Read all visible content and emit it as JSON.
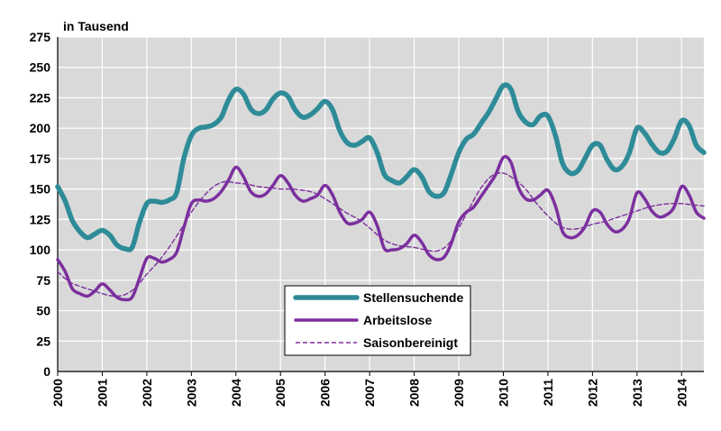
{
  "chart_data": {
    "type": "line",
    "unit_label": "in Tausend",
    "ylim": [
      0,
      275
    ],
    "y_ticks": [
      0,
      25,
      50,
      75,
      100,
      125,
      150,
      175,
      200,
      225,
      250,
      275
    ],
    "x_ticks": [
      "2000",
      "2001",
      "2002",
      "2003",
      "2004",
      "2005",
      "2006",
      "2007",
      "2008",
      "2009",
      "2010",
      "2011",
      "2012",
      "2013",
      "2014"
    ],
    "xlim": [
      2000,
      2014.5
    ],
    "grid": true,
    "legend_position": "bottom-center",
    "series": [
      {
        "name": "Stellensuchende",
        "color": "#2e8b98",
        "style": "solid-thick",
        "points": [
          [
            2000.0,
            152
          ],
          [
            2000.17,
            140
          ],
          [
            2000.33,
            124
          ],
          [
            2000.5,
            115
          ],
          [
            2000.67,
            110
          ],
          [
            2000.83,
            113
          ],
          [
            2001.0,
            116
          ],
          [
            2001.17,
            112
          ],
          [
            2001.33,
            104
          ],
          [
            2001.5,
            101
          ],
          [
            2001.67,
            102
          ],
          [
            2001.83,
            122
          ],
          [
            2002.0,
            138
          ],
          [
            2002.17,
            140
          ],
          [
            2002.33,
            139
          ],
          [
            2002.5,
            141
          ],
          [
            2002.67,
            147
          ],
          [
            2002.83,
            175
          ],
          [
            2003.0,
            194
          ],
          [
            2003.17,
            200
          ],
          [
            2003.33,
            201
          ],
          [
            2003.5,
            203
          ],
          [
            2003.67,
            209
          ],
          [
            2003.83,
            223
          ],
          [
            2004.0,
            232
          ],
          [
            2004.17,
            228
          ],
          [
            2004.33,
            216
          ],
          [
            2004.5,
            212
          ],
          [
            2004.67,
            215
          ],
          [
            2004.83,
            224
          ],
          [
            2005.0,
            229
          ],
          [
            2005.17,
            226
          ],
          [
            2005.33,
            215
          ],
          [
            2005.5,
            209
          ],
          [
            2005.67,
            211
          ],
          [
            2005.83,
            216
          ],
          [
            2006.0,
            222
          ],
          [
            2006.17,
            215
          ],
          [
            2006.33,
            198
          ],
          [
            2006.5,
            188
          ],
          [
            2006.67,
            186
          ],
          [
            2006.83,
            189
          ],
          [
            2007.0,
            192
          ],
          [
            2007.17,
            180
          ],
          [
            2007.33,
            162
          ],
          [
            2007.5,
            157
          ],
          [
            2007.67,
            155
          ],
          [
            2007.83,
            160
          ],
          [
            2008.0,
            166
          ],
          [
            2008.17,
            160
          ],
          [
            2008.33,
            148
          ],
          [
            2008.5,
            144
          ],
          [
            2008.67,
            147
          ],
          [
            2008.83,
            162
          ],
          [
            2009.0,
            180
          ],
          [
            2009.17,
            191
          ],
          [
            2009.33,
            195
          ],
          [
            2009.5,
            204
          ],
          [
            2009.67,
            213
          ],
          [
            2009.83,
            224
          ],
          [
            2010.0,
            235
          ],
          [
            2010.17,
            232
          ],
          [
            2010.33,
            214
          ],
          [
            2010.5,
            205
          ],
          [
            2010.67,
            203
          ],
          [
            2010.83,
            210
          ],
          [
            2011.0,
            210
          ],
          [
            2011.17,
            194
          ],
          [
            2011.33,
            171
          ],
          [
            2011.5,
            163
          ],
          [
            2011.67,
            165
          ],
          [
            2011.83,
            175
          ],
          [
            2012.0,
            186
          ],
          [
            2012.17,
            186
          ],
          [
            2012.33,
            174
          ],
          [
            2012.5,
            166
          ],
          [
            2012.67,
            169
          ],
          [
            2012.83,
            180
          ],
          [
            2013.0,
            200
          ],
          [
            2013.17,
            196
          ],
          [
            2013.33,
            187
          ],
          [
            2013.5,
            180
          ],
          [
            2013.67,
            181
          ],
          [
            2013.83,
            191
          ],
          [
            2014.0,
            206
          ],
          [
            2014.17,
            202
          ],
          [
            2014.33,
            186
          ],
          [
            2014.5,
            180
          ]
        ]
      },
      {
        "name": "Arbeitslose",
        "color": "#7b2f9e",
        "style": "solid",
        "points": [
          [
            2000.0,
            92
          ],
          [
            2000.17,
            82
          ],
          [
            2000.33,
            68
          ],
          [
            2000.5,
            64
          ],
          [
            2000.67,
            62
          ],
          [
            2000.83,
            66
          ],
          [
            2001.0,
            72
          ],
          [
            2001.17,
            67
          ],
          [
            2001.33,
            61
          ],
          [
            2001.5,
            59
          ],
          [
            2001.67,
            61
          ],
          [
            2001.83,
            76
          ],
          [
            2002.0,
            93
          ],
          [
            2002.17,
            93
          ],
          [
            2002.33,
            90
          ],
          [
            2002.5,
            92
          ],
          [
            2002.67,
            98
          ],
          [
            2002.83,
            118
          ],
          [
            2003.0,
            138
          ],
          [
            2003.17,
            141
          ],
          [
            2003.33,
            140
          ],
          [
            2003.5,
            142
          ],
          [
            2003.67,
            148
          ],
          [
            2003.83,
            157
          ],
          [
            2004.0,
            168
          ],
          [
            2004.17,
            160
          ],
          [
            2004.33,
            148
          ],
          [
            2004.5,
            144
          ],
          [
            2004.67,
            146
          ],
          [
            2004.83,
            153
          ],
          [
            2005.0,
            161
          ],
          [
            2005.17,
            155
          ],
          [
            2005.33,
            145
          ],
          [
            2005.5,
            140
          ],
          [
            2005.67,
            142
          ],
          [
            2005.83,
            145
          ],
          [
            2006.0,
            153
          ],
          [
            2006.17,
            145
          ],
          [
            2006.33,
            131
          ],
          [
            2006.5,
            122
          ],
          [
            2006.67,
            122
          ],
          [
            2006.83,
            125
          ],
          [
            2007.0,
            131
          ],
          [
            2007.17,
            120
          ],
          [
            2007.33,
            101
          ],
          [
            2007.5,
            100
          ],
          [
            2007.67,
            101
          ],
          [
            2007.83,
            105
          ],
          [
            2008.0,
            112
          ],
          [
            2008.17,
            106
          ],
          [
            2008.33,
            96
          ],
          [
            2008.5,
            92
          ],
          [
            2008.67,
            94
          ],
          [
            2008.83,
            105
          ],
          [
            2009.0,
            123
          ],
          [
            2009.17,
            131
          ],
          [
            2009.33,
            135
          ],
          [
            2009.5,
            144
          ],
          [
            2009.67,
            153
          ],
          [
            2009.83,
            162
          ],
          [
            2010.0,
            176
          ],
          [
            2010.17,
            172
          ],
          [
            2010.33,
            152
          ],
          [
            2010.5,
            142
          ],
          [
            2010.67,
            141
          ],
          [
            2010.83,
            145
          ],
          [
            2011.0,
            149
          ],
          [
            2011.17,
            136
          ],
          [
            2011.33,
            115
          ],
          [
            2011.5,
            110
          ],
          [
            2011.67,
            112
          ],
          [
            2011.83,
            119
          ],
          [
            2012.0,
            132
          ],
          [
            2012.17,
            131
          ],
          [
            2012.33,
            121
          ],
          [
            2012.5,
            115
          ],
          [
            2012.67,
            117
          ],
          [
            2012.83,
            126
          ],
          [
            2013.0,
            147
          ],
          [
            2013.17,
            142
          ],
          [
            2013.33,
            132
          ],
          [
            2013.5,
            127
          ],
          [
            2013.67,
            129
          ],
          [
            2013.83,
            135
          ],
          [
            2014.0,
            152
          ],
          [
            2014.17,
            145
          ],
          [
            2014.33,
            131
          ],
          [
            2014.5,
            126
          ]
        ]
      },
      {
        "name": "Saisonbereinigt",
        "color": "#7b2f9e",
        "style": "dashed",
        "points": [
          [
            2000.0,
            82
          ],
          [
            2000.25,
            74
          ],
          [
            2000.5,
            70
          ],
          [
            2000.75,
            67
          ],
          [
            2001.0,
            64
          ],
          [
            2001.25,
            62
          ],
          [
            2001.5,
            63
          ],
          [
            2001.75,
            69
          ],
          [
            2002.0,
            80
          ],
          [
            2002.25,
            90
          ],
          [
            2002.5,
            102
          ],
          [
            2002.75,
            116
          ],
          [
            2003.0,
            131
          ],
          [
            2003.25,
            143
          ],
          [
            2003.5,
            152
          ],
          [
            2003.75,
            156
          ],
          [
            2004.0,
            155
          ],
          [
            2004.25,
            154
          ],
          [
            2004.5,
            152
          ],
          [
            2004.75,
            151
          ],
          [
            2005.0,
            150
          ],
          [
            2005.25,
            150
          ],
          [
            2005.5,
            149
          ],
          [
            2005.75,
            147
          ],
          [
            2006.0,
            142
          ],
          [
            2006.25,
            136
          ],
          [
            2006.5,
            130
          ],
          [
            2006.75,
            125
          ],
          [
            2007.0,
            118
          ],
          [
            2007.25,
            110
          ],
          [
            2007.5,
            105
          ],
          [
            2007.75,
            103
          ],
          [
            2008.0,
            102
          ],
          [
            2008.25,
            100
          ],
          [
            2008.5,
            99
          ],
          [
            2008.75,
            104
          ],
          [
            2009.0,
            118
          ],
          [
            2009.25,
            135
          ],
          [
            2009.5,
            151
          ],
          [
            2009.75,
            161
          ],
          [
            2010.0,
            163
          ],
          [
            2010.25,
            158
          ],
          [
            2010.5,
            150
          ],
          [
            2010.75,
            138
          ],
          [
            2011.0,
            128
          ],
          [
            2011.25,
            120
          ],
          [
            2011.5,
            117
          ],
          [
            2011.75,
            118
          ],
          [
            2012.0,
            121
          ],
          [
            2012.25,
            123
          ],
          [
            2012.5,
            126
          ],
          [
            2012.75,
            129
          ],
          [
            2013.0,
            132
          ],
          [
            2013.25,
            135
          ],
          [
            2013.5,
            137
          ],
          [
            2013.75,
            138
          ],
          [
            2014.0,
            138
          ],
          [
            2014.25,
            137
          ],
          [
            2014.5,
            136
          ]
        ]
      }
    ]
  }
}
